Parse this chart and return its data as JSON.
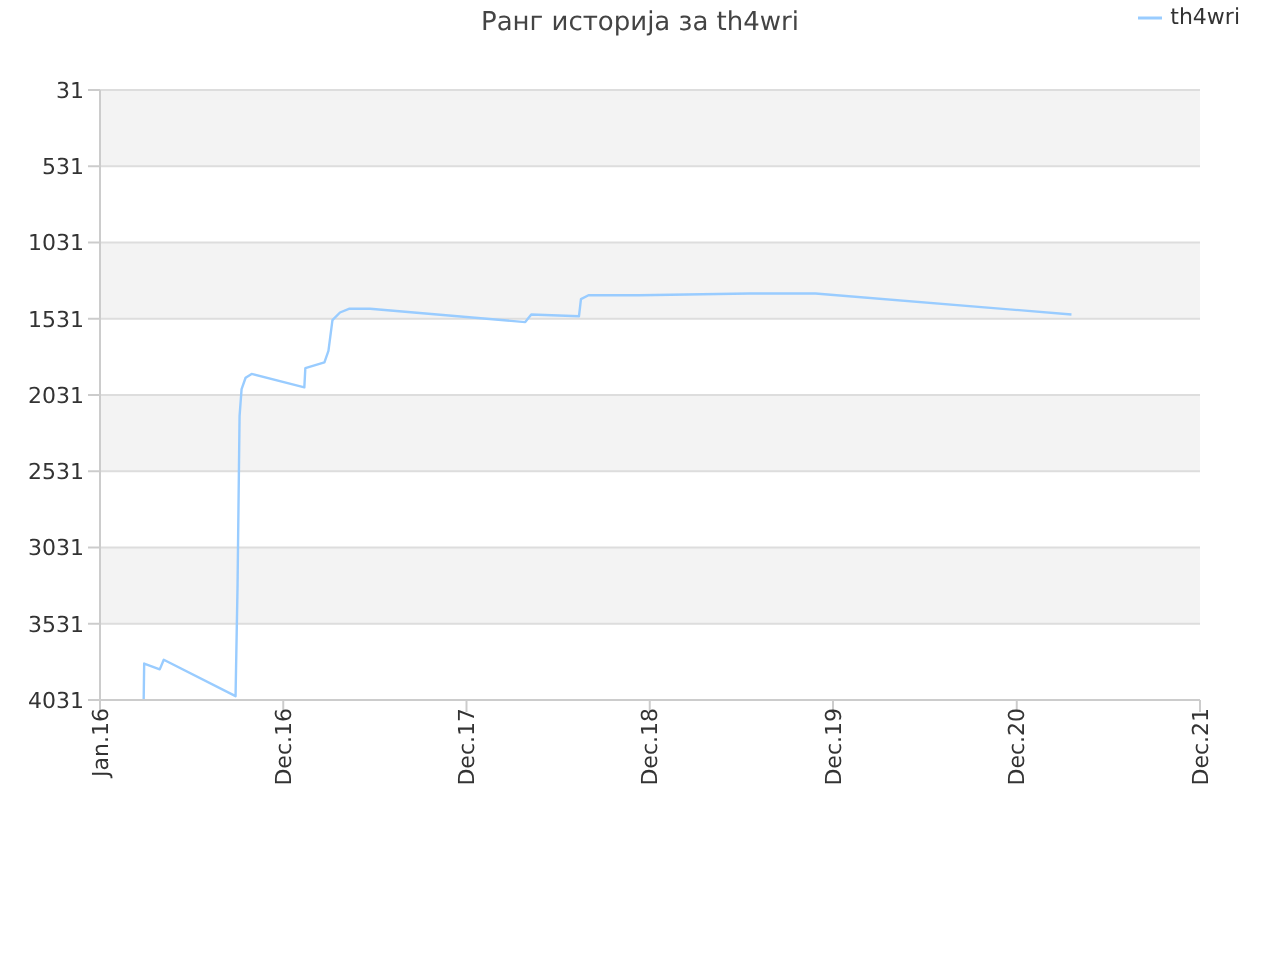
{
  "chart_data": {
    "type": "line",
    "title": "Ранг историја за th4wri",
    "x": [
      "2016-03-28",
      "2016-03-29",
      "2016-04-29",
      "2016-05-07",
      "2016-09-27",
      "2016-10-01",
      "2016-10-05",
      "2016-10-09",
      "2016-10-17",
      "2016-10-29",
      "2017-02-11",
      "2017-02-13",
      "2017-03-23",
      "2017-03-31",
      "2017-04-08",
      "2017-04-23",
      "2017-05-12",
      "2017-06-22",
      "2018-04-27",
      "2018-05-09",
      "2018-08-12",
      "2018-08-16",
      "2018-08-31",
      "2018-12-10",
      "2019-07-17",
      "2019-11-26",
      "2021-04-19"
    ],
    "series": [
      {
        "name": "th4wri",
        "color": "#99ccff",
        "values": [
          4031,
          3792,
          3830,
          3767,
          4006,
          3276,
          2169,
          1993,
          1918,
          1893,
          1981,
          1855,
          1817,
          1742,
          1540,
          1490,
          1465,
          1465,
          1553,
          1503,
          1515,
          1402,
          1377,
          1377,
          1365,
          1365,
          1503
        ]
      }
    ],
    "ylim": [
      4031,
      31
    ],
    "yticks": [
      31,
      531,
      1031,
      1531,
      2031,
      2531,
      3031,
      3531,
      4031
    ],
    "xlim": [
      "2016-01-01",
      "2021-12-31"
    ],
    "xticks": [
      {
        "value": "2016-01-01",
        "label": "Jan.16"
      },
      {
        "value": "2016-12-31",
        "label": "Dec.16"
      },
      {
        "value": "2017-12-31",
        "label": "Dec.17"
      },
      {
        "value": "2018-12-31",
        "label": "Dec.18"
      },
      {
        "value": "2019-12-31",
        "label": "Dec.19"
      },
      {
        "value": "2020-12-31",
        "label": "Dec.20"
      },
      {
        "value": "2021-12-31",
        "label": "Dec.21"
      }
    ],
    "grid": "y",
    "legend": "top right",
    "marker": "none",
    "line_style": "solid"
  }
}
